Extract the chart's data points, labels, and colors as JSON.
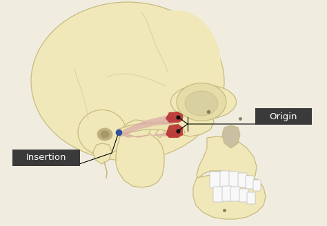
{
  "bg_color": "#f0ede0",
  "skull_color": "#f0e8b8",
  "skull_color2": "#ede5b0",
  "skull_edge_color": "#c8ba80",
  "skull_shadow": "#d8d0a0",
  "muscle_pink": "#dba8a8",
  "muscle_pink2": "#c89898",
  "muscle_red": "#b83030",
  "muscle_blue": "#3050a0",
  "label_bg": "#3a3a3a",
  "label_fg": "#ffffff",
  "label_fontsize": 9.5,
  "origin_label": "Origin",
  "insertion_label": "Insertion"
}
